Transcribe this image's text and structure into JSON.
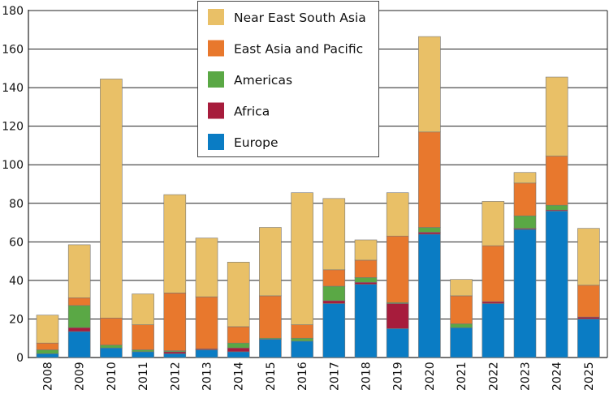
{
  "chart_data": {
    "type": "bar",
    "stacked": true,
    "categories": [
      "2008",
      "2009",
      "2010",
      "2011",
      "2012",
      "2013",
      "2014",
      "2015",
      "2016",
      "2017",
      "2018",
      "2019",
      "2020",
      "2021",
      "2022",
      "2023",
      "2024",
      "2025"
    ],
    "series": [
      {
        "name": "Europe",
        "color": "#0a7cc4",
        "values": [
          2,
          13.5,
          5,
          3,
          2,
          4,
          3,
          9.5,
          8.5,
          28,
          38,
          15,
          64,
          15.5,
          28,
          66.5,
          76,
          20
        ]
      },
      {
        "name": "Africa",
        "color": "#a71c3c",
        "values": [
          0,
          2,
          0,
          0,
          1,
          0.5,
          2,
          0,
          0,
          1.5,
          1,
          13,
          1,
          0,
          1,
          0.5,
          0.5,
          1
        ]
      },
      {
        "name": "Americas",
        "color": "#5aa845",
        "values": [
          2,
          11.5,
          1.5,
          1,
          0.5,
          0,
          2.5,
          0.5,
          1.5,
          7.5,
          2.5,
          0.5,
          2.5,
          2,
          0,
          6.5,
          2.5,
          0
        ]
      },
      {
        "name": "East Asia and Pacific",
        "color": "#e8782d",
        "values": [
          3.5,
          4,
          14,
          13,
          30,
          27,
          8.5,
          22,
          7,
          8.5,
          9,
          34.5,
          49.5,
          14.5,
          29,
          17,
          25.5,
          16.5
        ]
      },
      {
        "name": "Near East South Asia",
        "color": "#e9c067",
        "values": [
          14.5,
          27.5,
          124,
          16,
          51,
          30.5,
          33.5,
          35.5,
          68.5,
          37,
          10.5,
          22.5,
          49.5,
          8.5,
          23,
          5.5,
          41,
          29.5
        ]
      }
    ],
    "legend_order": [
      "Near East South Asia",
      "East Asia and Pacific",
      "Americas",
      "Africa",
      "Europe"
    ],
    "ylim": [
      0,
      180
    ],
    "yticks": [
      0,
      20,
      40,
      60,
      80,
      100,
      120,
      140,
      160,
      180
    ],
    "grid": true,
    "legend_position": "top-center",
    "title": "",
    "xlabel": "",
    "ylabel": ""
  }
}
